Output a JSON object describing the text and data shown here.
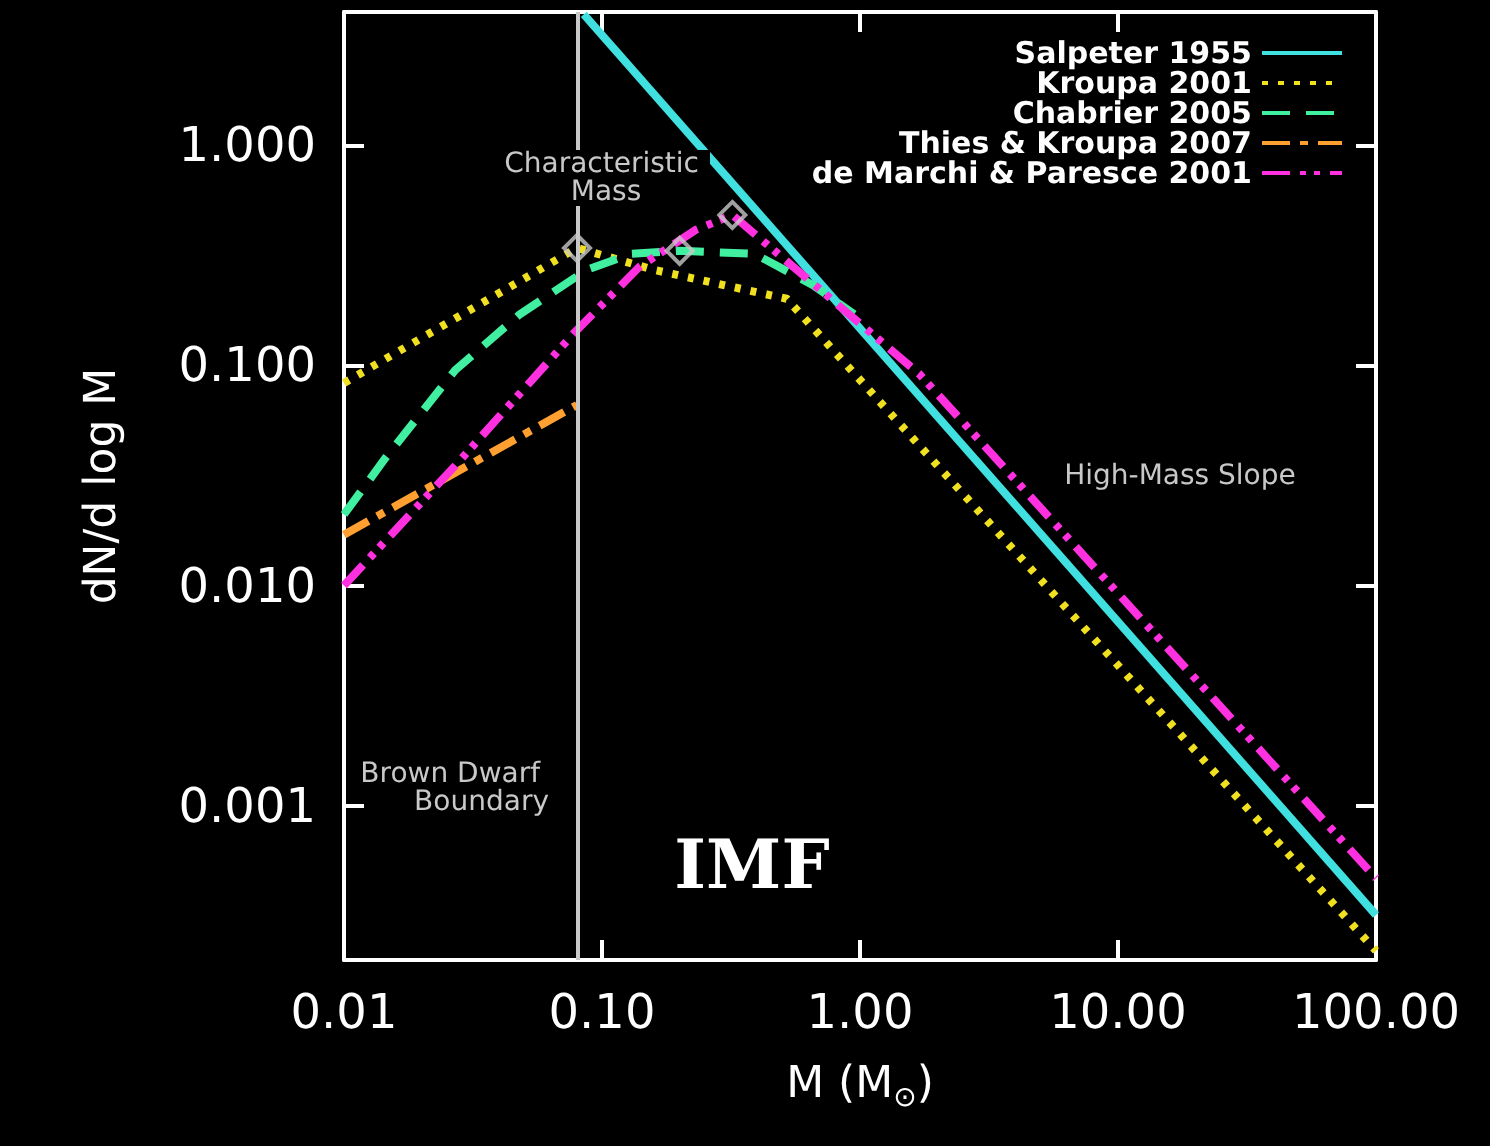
{
  "chart_data": {
    "type": "line",
    "xlabel": "M (M$_{⊙}$)",
    "ylabel": "dN/d log M",
    "log": "xy",
    "xlim": [
      0.01,
      100
    ],
    "ylim": [
      0.0002,
      4
    ],
    "xticks": [
      0.01,
      {
        "value": 0.1,
        "label": "0.10"
      },
      {
        "value": 1,
        "label": "1.00"
      },
      {
        "value": 10,
        "label": "10.00"
      },
      {
        "value": 100,
        "label": "100.00"
      }
    ],
    "yticks": [
      {
        "value": 0.001,
        "label": "0.001"
      },
      {
        "value": 0.01,
        "label": "0.010"
      },
      {
        "value": 0.1,
        "label": "0.100"
      },
      {
        "value": 1,
        "label": "1.000"
      }
    ],
    "grid": false,
    "legend": "top right",
    "series": [
      {
        "name": "Salpeter 1955",
        "color": "#40e0e0",
        "line_style": "solid",
        "x": [
          0.085,
          100
        ],
        "values": [
          3.9,
          0.00032
        ]
      },
      {
        "name": "Kroupa 2001",
        "color": "#f0e020",
        "line_style": "dotted",
        "x": [
          0.01,
          0.08,
          0.16,
          0.52,
          100
        ],
        "values": [
          0.083,
          0.34,
          0.27,
          0.2,
          0.00022
        ]
      },
      {
        "name": "Chabrier 2005",
        "color": "#40f0a0",
        "line_style": "dashed",
        "x": [
          0.01,
          0.0145,
          0.027,
          0.048,
          0.087,
          0.13,
          0.2,
          0.39,
          0.66,
          0.95
        ],
        "values": [
          0.021,
          0.038,
          0.095,
          0.17,
          0.27,
          0.32,
          0.33,
          0.32,
          0.23,
          0.17
        ]
      },
      {
        "name": "Thies & Kroupa 2007",
        "color": "#ffa030",
        "line_style": "dashdot",
        "x": [
          0.01,
          0.08
        ],
        "values": [
          0.017,
          0.066
        ]
      },
      {
        "name": "de Marchi & Paresce 2001",
        "color": "#ff30e0",
        "line_style": "dashdotdot",
        "x": [
          0.01,
          0.027,
          0.078,
          0.14,
          0.23,
          0.32,
          1.7,
          100
        ],
        "values": [
          0.01,
          0.035,
          0.14,
          0.28,
          0.41,
          0.48,
          0.091,
          0.00047
        ]
      },
      {
        "type": "scatter",
        "color": "#c8c8c8",
        "marker": "diamond",
        "x": [
          0.08,
          0.2,
          0.32
        ],
        "values": [
          0.34,
          0.33,
          0.48
        ]
      }
    ],
    "ref_lines": [
      {
        "axis": "x",
        "value": 0.08,
        "label": "Brown Dwarf Boundary",
        "color": "#c8c8c8"
      }
    ],
    "annotations": [
      "Characteristic Mass",
      "High-Mass Slope",
      "IMF"
    ]
  }
}
